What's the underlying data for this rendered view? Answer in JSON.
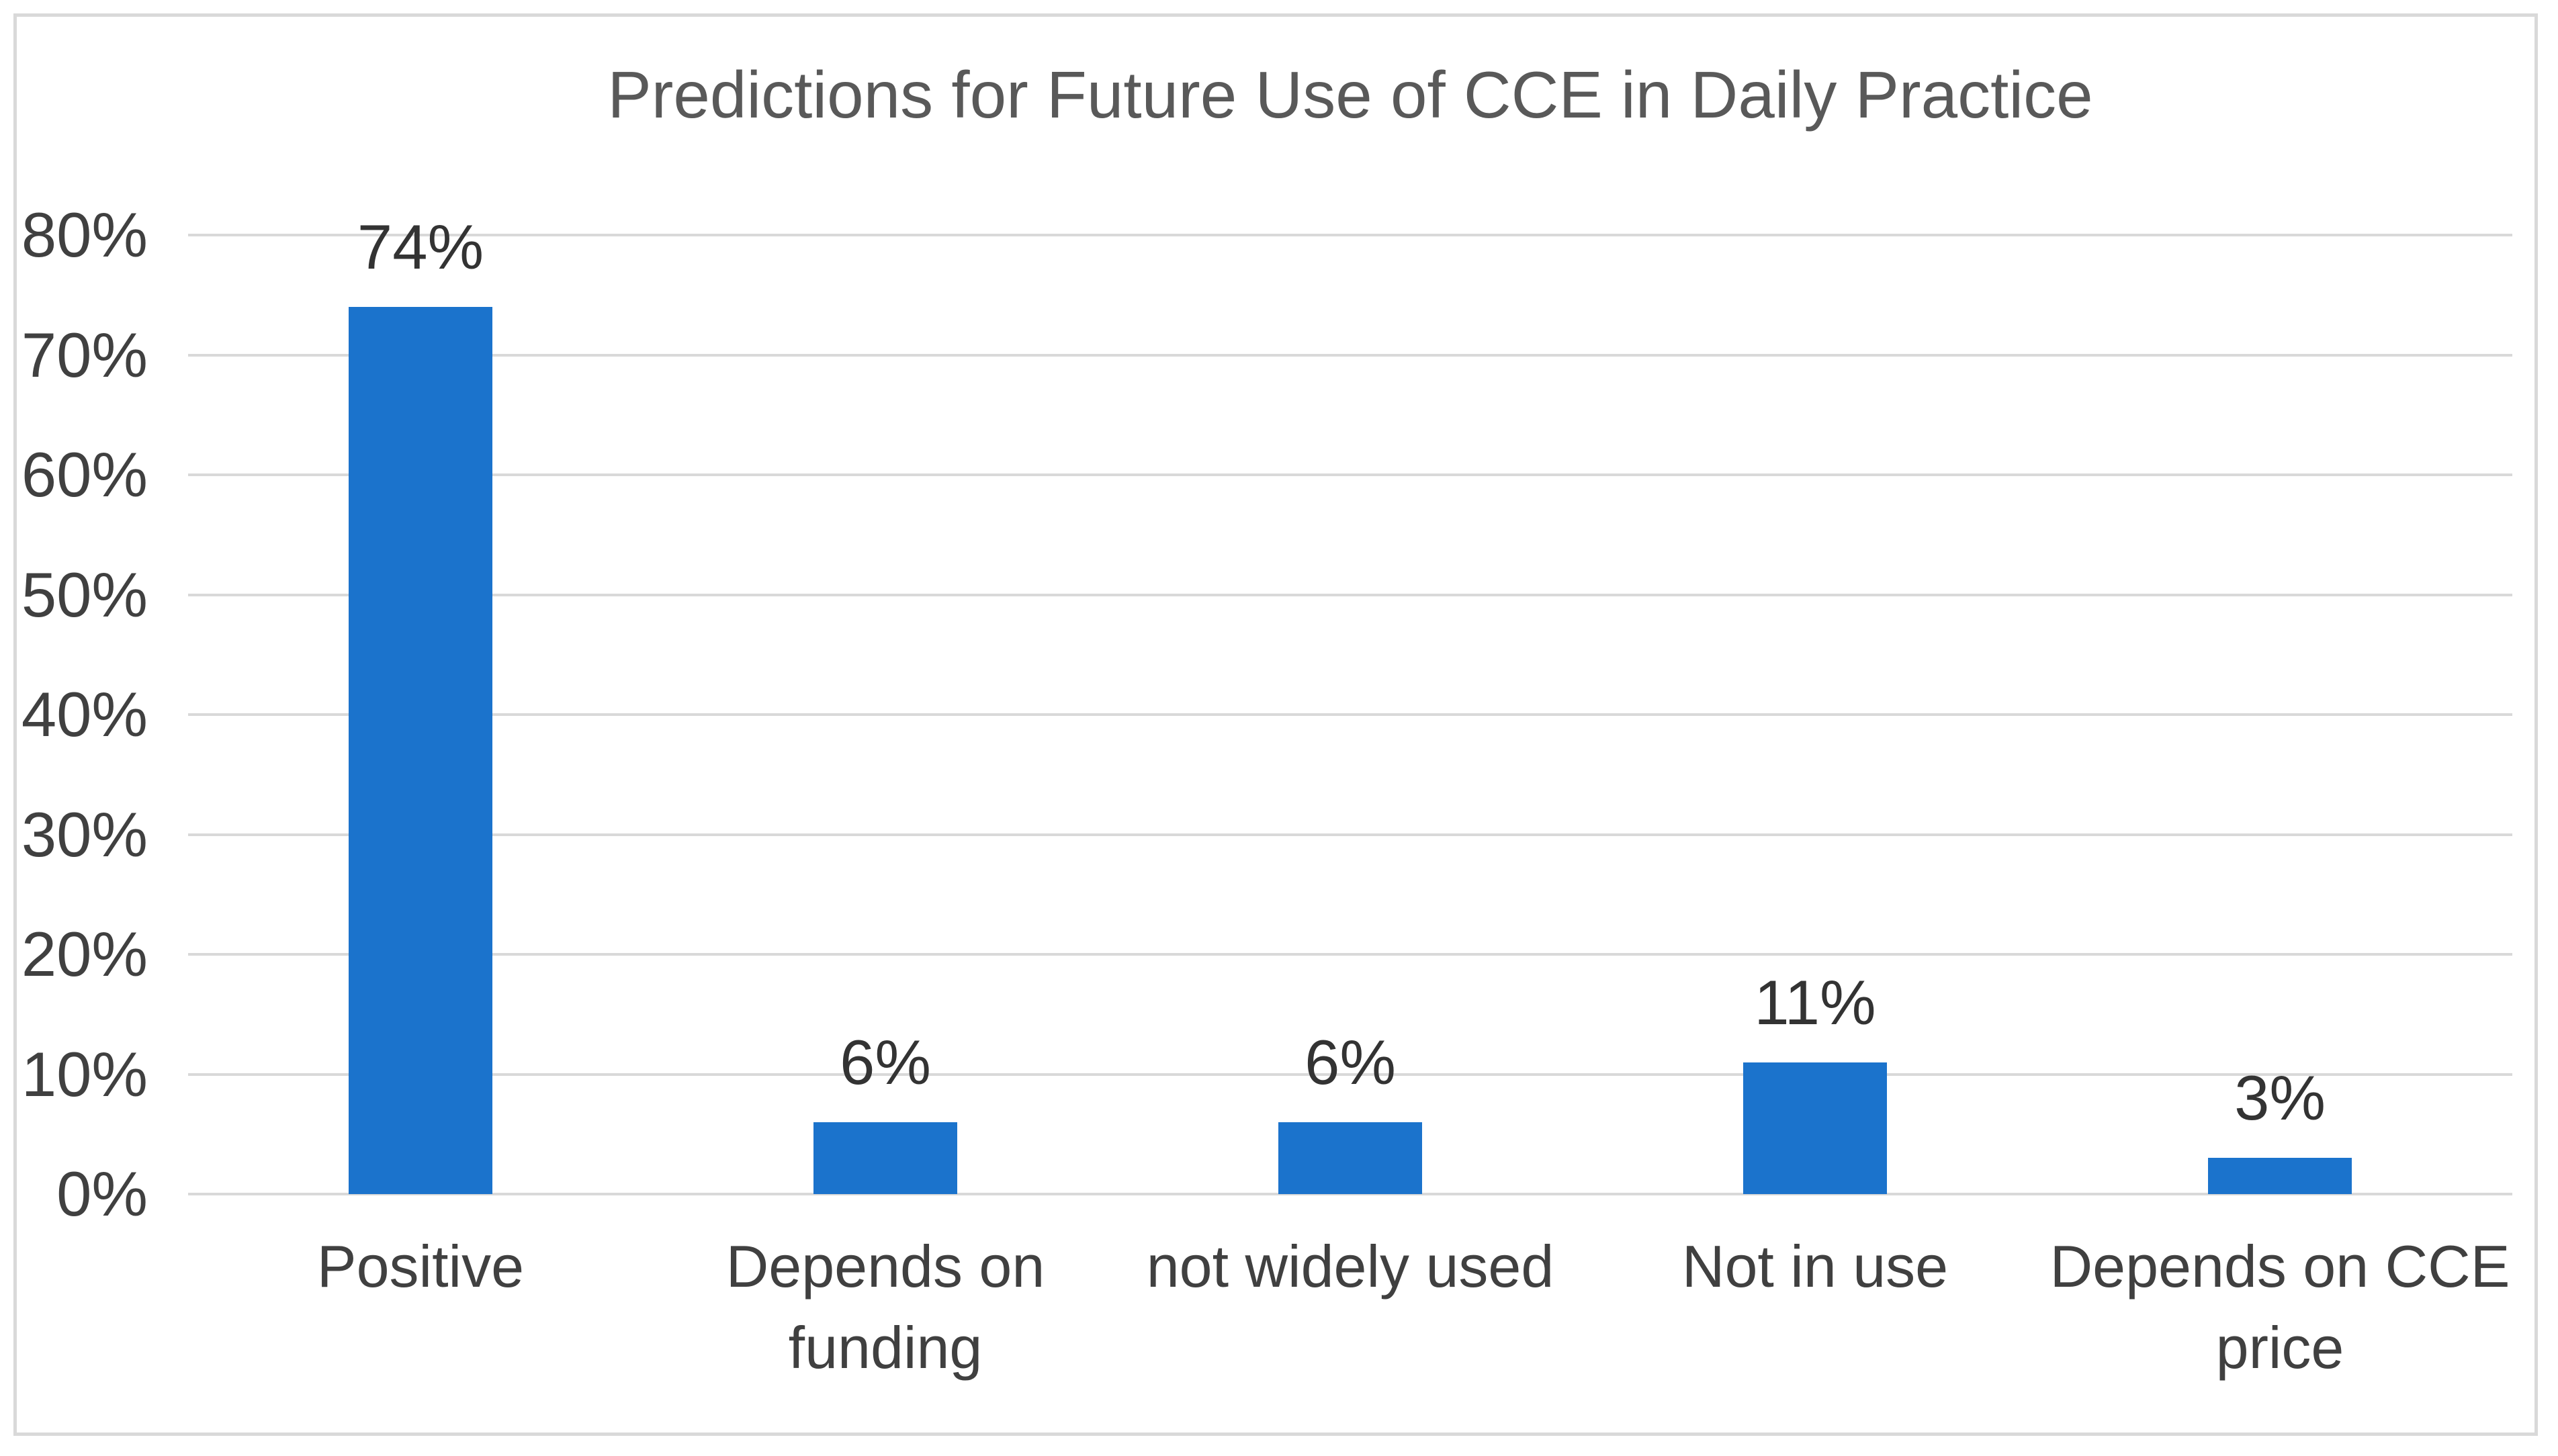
{
  "chart_data": {
    "type": "bar",
    "title": "Predictions for Future Use of CCE in Daily Practice",
    "categories": [
      "Positive",
      "Depends on funding",
      "not widely used",
      "Not in use",
      "Depends on CCE price"
    ],
    "values": [
      74,
      6,
      6,
      11,
      3
    ],
    "data_labels": [
      "74%",
      "6%",
      "6%",
      "11%",
      "3%"
    ],
    "y_tick_values": [
      0,
      10,
      20,
      30,
      40,
      50,
      60,
      70,
      80
    ],
    "y_tick_labels": [
      "0%",
      "10%",
      "20%",
      "30%",
      "40%",
      "50%",
      "60%",
      "70%",
      "80%"
    ],
    "ylim": [
      0,
      80
    ],
    "xlabel": "",
    "ylabel": "",
    "legend": "none",
    "grid": "horizontal",
    "colors": {
      "bar": "#1b73cc",
      "gridline": "#d9d9d9",
      "axis_line": "#d9d9d9",
      "title_text": "#595959",
      "tick_text": "#404040",
      "category_text": "#404040",
      "data_label_text": "#333333",
      "figure_border": "#d9d9d9",
      "background": "#ffffff"
    }
  }
}
